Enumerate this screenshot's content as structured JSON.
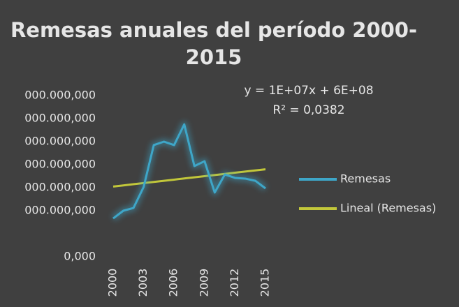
{
  "chart_data": {
    "type": "line",
    "title": [
      "Remesas anuales del período 2000-",
      "2015"
    ],
    "categories": [
      "2000",
      null,
      null,
      "2003",
      null,
      null,
      "2006",
      null,
      null,
      "2009",
      null,
      null,
      "2012",
      null,
      null,
      "2015"
    ],
    "series": [
      {
        "name": "Remesas",
        "color": "#3ea6c8",
        "values": [
          333000000,
          400000000,
          424000000,
          606000000,
          970000000,
          1000000000,
          970000000,
          1150000000,
          788000000,
          830000000,
          558000000,
          715000000,
          685000000,
          679000000,
          660000000,
          594000000
        ]
      },
      {
        "name": "Lineal (Remesas)",
        "color": "#c2c73a",
        "values": [
          610000000,
          620000000,
          630000000,
          640000000,
          650000000,
          660000000,
          670000000,
          680000000,
          690000000,
          700000000,
          710000000,
          720000000,
          730000000,
          740000000,
          750000000,
          760000000
        ]
      }
    ],
    "annotations": [
      "y = 1E+07x + 6E+08",
      "R² = 0,0382"
    ],
    "ylim": [
      0,
      1400000000
    ],
    "yticks": [
      {
        "value": 0,
        "label": "0,000"
      },
      {
        "value": 400000000,
        "label": "000.000,000"
      },
      {
        "value": 600000000,
        "label": "000.000,000"
      },
      {
        "value": 800000000,
        "label": "000.000,000"
      },
      {
        "value": 1000000000,
        "label": "000.000,000"
      },
      {
        "value": 1200000000,
        "label": "000.000,000"
      },
      {
        "value": 1400000000,
        "label": "000.000,000"
      }
    ],
    "grid": false,
    "legend": "right"
  }
}
